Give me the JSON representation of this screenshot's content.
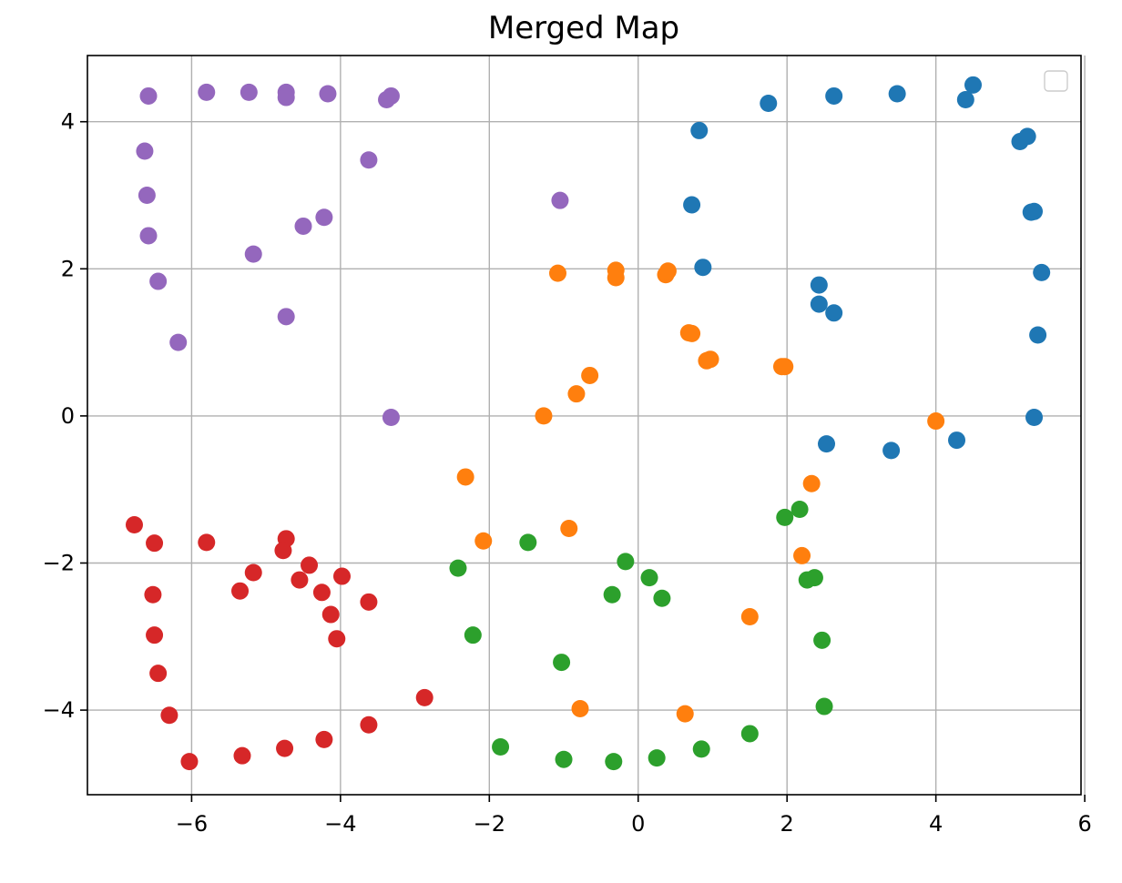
{
  "chart_data": {
    "type": "scatter",
    "title": "Merged Map",
    "xlabel": "",
    "ylabel": "",
    "xlim": [
      -7.4,
      5.95
    ],
    "ylim": [
      -5.15,
      4.9
    ],
    "xticks": [
      -6,
      -4,
      -2,
      0,
      2,
      4,
      6
    ],
    "yticks": [
      -4,
      -2,
      0,
      2,
      4
    ],
    "xtick_labels": [
      "−6",
      "−4",
      "−2",
      "0",
      "2",
      "4",
      "6"
    ],
    "ytick_labels": [
      "−4",
      "−2",
      "0",
      "2",
      "4"
    ],
    "grid": true,
    "legend": {
      "placement": "top-right",
      "entries": []
    },
    "series": [
      {
        "color": "#1f77b4",
        "points": [
          [
            0.82,
            3.88
          ],
          [
            1.75,
            4.25
          ],
          [
            2.63,
            4.35
          ],
          [
            3.48,
            4.38
          ],
          [
            4.5,
            4.5
          ],
          [
            4.4,
            4.3
          ],
          [
            5.13,
            3.73
          ],
          [
            5.23,
            3.8
          ],
          [
            5.28,
            2.77
          ],
          [
            5.32,
            2.78
          ],
          [
            5.42,
            1.95
          ],
          [
            5.37,
            1.1
          ],
          [
            5.32,
            -0.02
          ],
          [
            0.72,
            2.87
          ],
          [
            0.87,
            2.02
          ],
          [
            2.43,
            1.78
          ],
          [
            2.43,
            1.52
          ],
          [
            2.63,
            1.4
          ],
          [
            2.53,
            -0.38
          ],
          [
            3.4,
            -0.47
          ],
          [
            4.28,
            -0.33
          ]
        ]
      },
      {
        "color": "#ff7f0e",
        "points": [
          [
            -1.08,
            1.94
          ],
          [
            -0.3,
            1.98
          ],
          [
            -0.3,
            1.88
          ],
          [
            0.37,
            1.92
          ],
          [
            0.4,
            1.97
          ],
          [
            0.68,
            1.13
          ],
          [
            0.72,
            1.12
          ],
          [
            0.92,
            0.75
          ],
          [
            0.97,
            0.77
          ],
          [
            1.97,
            0.67
          ],
          [
            1.93,
            0.67
          ],
          [
            -0.65,
            0.55
          ],
          [
            -0.83,
            0.3
          ],
          [
            -1.27,
            0.0
          ],
          [
            4.0,
            -0.07
          ],
          [
            -2.32,
            -0.83
          ],
          [
            2.33,
            -0.92
          ],
          [
            -2.08,
            -1.7
          ],
          [
            -0.93,
            -1.53
          ],
          [
            2.2,
            -1.9
          ],
          [
            1.5,
            -2.73
          ],
          [
            -0.78,
            -3.98
          ],
          [
            0.63,
            -4.05
          ]
        ]
      },
      {
        "color": "#2ca02c",
        "points": [
          [
            1.97,
            -1.38
          ],
          [
            2.17,
            -1.27
          ],
          [
            -1.48,
            -1.72
          ],
          [
            -2.42,
            -2.07
          ],
          [
            -0.17,
            -1.98
          ],
          [
            0.15,
            -2.2
          ],
          [
            2.27,
            -2.23
          ],
          [
            2.37,
            -2.2
          ],
          [
            -0.35,
            -2.43
          ],
          [
            0.32,
            -2.48
          ],
          [
            -2.22,
            -2.98
          ],
          [
            -1.03,
            -3.35
          ],
          [
            2.47,
            -3.05
          ],
          [
            2.5,
            -3.95
          ],
          [
            -1.85,
            -4.5
          ],
          [
            -1.0,
            -4.67
          ],
          [
            -0.33,
            -4.7
          ],
          [
            0.25,
            -4.65
          ],
          [
            0.85,
            -4.53
          ],
          [
            1.5,
            -4.32
          ]
        ]
      },
      {
        "color": "#d62728",
        "points": [
          [
            -6.77,
            -1.48
          ],
          [
            -6.5,
            -1.73
          ],
          [
            -5.8,
            -1.72
          ],
          [
            -4.73,
            -1.67
          ],
          [
            -4.77,
            -1.83
          ],
          [
            -5.17,
            -2.13
          ],
          [
            -4.42,
            -2.03
          ],
          [
            -4.55,
            -2.23
          ],
          [
            -3.98,
            -2.18
          ],
          [
            -5.35,
            -2.38
          ],
          [
            -4.25,
            -2.4
          ],
          [
            -6.52,
            -2.43
          ],
          [
            -3.62,
            -2.53
          ],
          [
            -4.13,
            -2.7
          ],
          [
            -6.5,
            -2.98
          ],
          [
            -4.05,
            -3.03
          ],
          [
            -6.45,
            -3.5
          ],
          [
            -2.87,
            -3.83
          ],
          [
            -6.3,
            -4.07
          ],
          [
            -3.62,
            -4.2
          ],
          [
            -4.22,
            -4.4
          ],
          [
            -4.75,
            -4.52
          ],
          [
            -5.32,
            -4.62
          ],
          [
            -6.03,
            -4.7
          ]
        ]
      },
      {
        "color": "#9467bd",
        "points": [
          [
            -6.58,
            4.35
          ],
          [
            -5.8,
            4.4
          ],
          [
            -5.23,
            4.4
          ],
          [
            -4.73,
            4.4
          ],
          [
            -4.73,
            4.33
          ],
          [
            -4.17,
            4.38
          ],
          [
            -3.38,
            4.3
          ],
          [
            -3.32,
            4.35
          ],
          [
            -6.63,
            3.6
          ],
          [
            -3.62,
            3.48
          ],
          [
            -6.6,
            3.0
          ],
          [
            -1.05,
            2.93
          ],
          [
            -4.22,
            2.7
          ],
          [
            -4.5,
            2.58
          ],
          [
            -6.58,
            2.45
          ],
          [
            -5.17,
            2.2
          ],
          [
            -6.45,
            1.83
          ],
          [
            -4.73,
            1.35
          ],
          [
            -6.18,
            1.0
          ],
          [
            -3.32,
            -0.02
          ]
        ]
      }
    ]
  }
}
